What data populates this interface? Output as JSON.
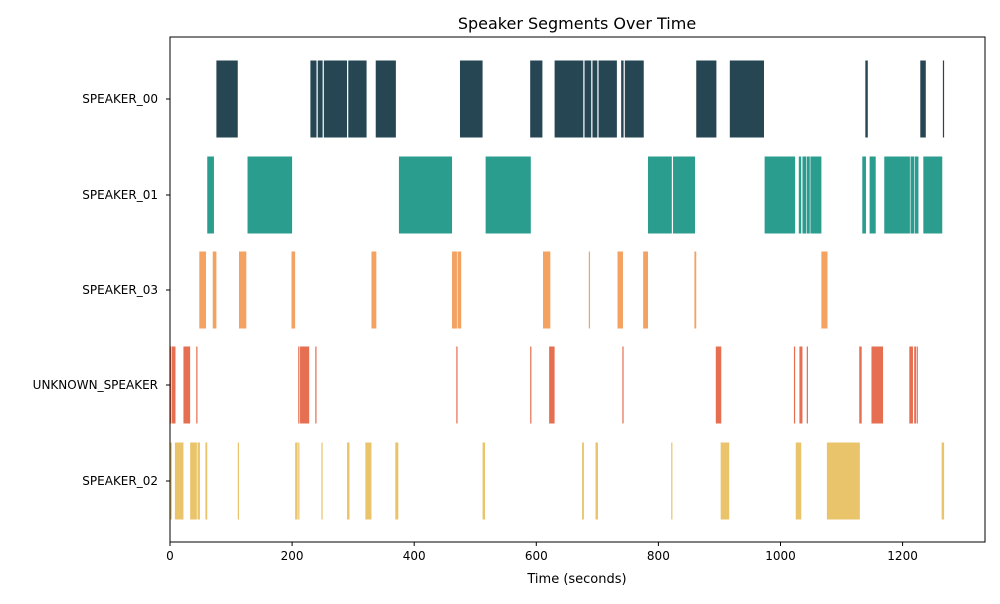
{
  "chart_data": {
    "type": "timeline",
    "title": "Speaker Segments Over Time",
    "xlabel": "Time (seconds)",
    "ylabel": "",
    "xlim": [
      0,
      1335
    ],
    "xticks": [
      0,
      200,
      400,
      600,
      800,
      1000,
      1200
    ],
    "xtick_labels": [
      "0",
      "200",
      "400",
      "600",
      "800",
      "1000",
      "1200"
    ],
    "grid": false,
    "series": [
      {
        "name": "SPEAKER_00",
        "color": "#264653",
        "segments": [
          [
            76,
            111
          ],
          [
            230,
            240
          ],
          [
            242,
            250
          ],
          [
            252,
            290
          ],
          [
            292,
            322
          ],
          [
            337,
            370
          ],
          [
            475,
            512
          ],
          [
            590,
            610
          ],
          [
            630,
            677
          ],
          [
            679,
            690
          ],
          [
            692,
            700
          ],
          [
            702,
            732
          ],
          [
            739,
            743
          ],
          [
            745,
            776
          ],
          [
            862,
            895
          ],
          [
            917,
            973
          ],
          [
            1139,
            1143
          ],
          [
            1229,
            1238
          ],
          [
            1266,
            1268
          ]
        ]
      },
      {
        "name": "SPEAKER_01",
        "color": "#2a9d8f",
        "segments": [
          [
            61,
            72
          ],
          [
            127,
            200
          ],
          [
            375,
            462
          ],
          [
            517,
            591
          ],
          [
            783,
            822
          ],
          [
            824,
            860
          ],
          [
            974,
            1024
          ],
          [
            1030,
            1034
          ],
          [
            1036,
            1042
          ],
          [
            1043,
            1048
          ],
          [
            1049,
            1067
          ],
          [
            1134,
            1140
          ],
          [
            1146,
            1156
          ],
          [
            1170,
            1212
          ],
          [
            1213,
            1219
          ],
          [
            1220,
            1226
          ],
          [
            1234,
            1265
          ]
        ]
      },
      {
        "name": "SPEAKER_03",
        "color": "#f4a261",
        "segments": [
          [
            48,
            59
          ],
          [
            70,
            76
          ],
          [
            113,
            125
          ],
          [
            199,
            205
          ],
          [
            330,
            338
          ],
          [
            462,
            470
          ],
          [
            471,
            477
          ],
          [
            611,
            623
          ],
          [
            686,
            688
          ],
          [
            733,
            742
          ],
          [
            775,
            783
          ],
          [
            859,
            862
          ],
          [
            1067,
            1077
          ]
        ]
      },
      {
        "name": "UNKNOWN_SPEAKER",
        "color": "#e76f51",
        "segments": [
          [
            0,
            2
          ],
          [
            3,
            9
          ],
          [
            22,
            33
          ],
          [
            43,
            45
          ],
          [
            210,
            212
          ],
          [
            213,
            228
          ],
          [
            238,
            240
          ],
          [
            469,
            471
          ],
          [
            590,
            592
          ],
          [
            621,
            630
          ],
          [
            741,
            743
          ],
          [
            894,
            903
          ],
          [
            1022,
            1024
          ],
          [
            1031,
            1036
          ],
          [
            1043,
            1045
          ],
          [
            1129,
            1133
          ],
          [
            1149,
            1168
          ],
          [
            1211,
            1217
          ],
          [
            1219,
            1222
          ],
          [
            1223,
            1225
          ]
        ]
      },
      {
        "name": "SPEAKER_02",
        "color": "#e9c46a",
        "segments": [
          [
            0,
            3
          ],
          [
            8,
            22
          ],
          [
            33,
            44
          ],
          [
            45,
            49
          ],
          [
            58,
            61
          ],
          [
            111,
            113
          ],
          [
            205,
            209
          ],
          [
            210,
            212
          ],
          [
            248,
            250
          ],
          [
            290,
            294
          ],
          [
            320,
            330
          ],
          [
            369,
            374
          ],
          [
            512,
            516
          ],
          [
            675,
            678
          ],
          [
            697,
            701
          ],
          [
            821,
            823
          ],
          [
            902,
            916
          ],
          [
            1025,
            1034
          ],
          [
            1076,
            1130
          ],
          [
            1264,
            1268
          ]
        ]
      }
    ]
  }
}
